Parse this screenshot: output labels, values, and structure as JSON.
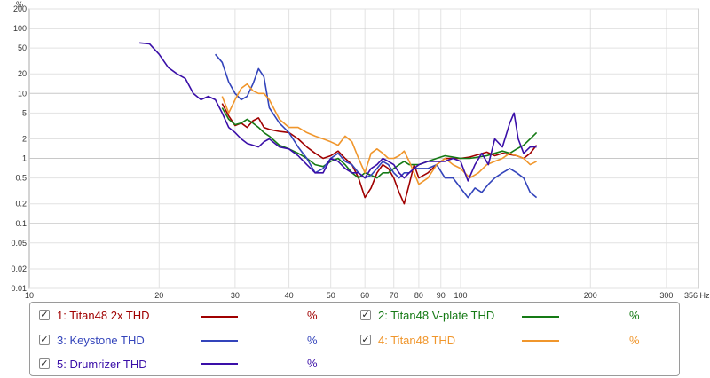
{
  "chart_data": {
    "type": "line",
    "title": "",
    "xlabel": "",
    "ylabel": "",
    "x_scale": "log",
    "y_scale": "log",
    "xlim": [
      10,
      356
    ],
    "ylim": [
      0.01,
      200
    ],
    "x_ticks": [
      {
        "v": 10,
        "label": "10"
      },
      {
        "v": 20,
        "label": "20"
      },
      {
        "v": 30,
        "label": "30"
      },
      {
        "v": 40,
        "label": "40"
      },
      {
        "v": 50,
        "label": "50"
      },
      {
        "v": 60,
        "label": "60"
      },
      {
        "v": 70,
        "label": "70"
      },
      {
        "v": 80,
        "label": "80"
      },
      {
        "v": 90,
        "label": "90"
      },
      {
        "v": 100,
        "label": "100"
      },
      {
        "v": 200,
        "label": "200"
      },
      {
        "v": 300,
        "label": "300"
      },
      {
        "v": 356,
        "label": "356 Hz"
      }
    ],
    "y_ticks": [
      {
        "v": 0.01,
        "label": "0.01"
      },
      {
        "v": 0.02,
        "label": "0.02"
      },
      {
        "v": 0.05,
        "label": "0.05"
      },
      {
        "v": 0.1,
        "label": "0.1"
      },
      {
        "v": 0.2,
        "label": "0.2"
      },
      {
        "v": 0.5,
        "label": "0.5"
      },
      {
        "v": 1,
        "label": "1"
      },
      {
        "v": 2,
        "label": "2"
      },
      {
        "v": 5,
        "label": "5"
      },
      {
        "v": 10,
        "label": "10"
      },
      {
        "v": 20,
        "label": "20"
      },
      {
        "v": 50,
        "label": "50"
      },
      {
        "v": 100,
        "label": "100"
      },
      {
        "v": 200,
        "label": "200"
      }
    ],
    "y_unit_label": "%",
    "grid": true,
    "legend_position": "bottom",
    "series": [
      {
        "name": "1: Titan48 2x THD",
        "color": "#a00000",
        "unit": "%",
        "checked": true,
        "x": [
          28,
          29,
          30,
          31,
          32,
          33,
          34,
          35,
          36,
          38,
          40,
          42,
          44,
          46,
          48,
          50,
          52,
          54,
          56,
          58,
          60,
          62,
          64,
          66,
          68,
          70,
          72,
          74,
          76,
          78,
          80,
          84,
          88,
          92,
          96,
          100,
          105,
          110,
          115,
          120,
          125,
          130,
          135,
          140,
          145,
          150
        ],
        "y": [
          7,
          4.5,
          3.2,
          3.5,
          3.0,
          3.8,
          4.2,
          3.0,
          2.8,
          2.6,
          2.5,
          2.0,
          1.5,
          1.2,
          1.0,
          1.1,
          1.3,
          1.0,
          0.8,
          0.5,
          0.25,
          0.35,
          0.6,
          0.8,
          0.7,
          0.5,
          0.3,
          0.2,
          0.4,
          0.8,
          0.5,
          0.6,
          0.8,
          1.0,
          1.0,
          1.0,
          1.05,
          1.15,
          1.25,
          1.1,
          1.2,
          1.15,
          1.1,
          1.0,
          1.2,
          1.6
        ]
      },
      {
        "name": "2: Titan48 V-plate THD",
        "color": "#157a15",
        "unit": "%",
        "checked": true,
        "x": [
          28,
          29,
          30,
          31,
          32,
          33,
          34,
          35,
          36,
          38,
          40,
          42,
          44,
          46,
          48,
          50,
          52,
          54,
          56,
          58,
          60,
          62,
          64,
          66,
          68,
          70,
          72,
          74,
          76,
          78,
          80,
          84,
          88,
          92,
          96,
          100,
          105,
          110,
          115,
          120,
          125,
          130,
          135,
          140,
          145,
          150
        ],
        "y": [
          6,
          4.0,
          3.3,
          3.5,
          4.0,
          3.5,
          3.0,
          2.5,
          2.2,
          1.6,
          1.4,
          1.2,
          1.0,
          0.8,
          0.75,
          0.9,
          1.0,
          0.8,
          0.6,
          0.5,
          0.6,
          0.55,
          0.5,
          0.6,
          0.6,
          0.7,
          0.8,
          0.9,
          0.8,
          0.8,
          0.8,
          0.9,
          1.0,
          1.1,
          1.05,
          1.0,
          1.0,
          1.05,
          1.1,
          1.2,
          1.3,
          1.2,
          1.4,
          1.6,
          2.0,
          2.5
        ]
      },
      {
        "name": "3: Keystone THD",
        "color": "#3344bb",
        "unit": "%",
        "checked": true,
        "x": [
          27,
          28,
          29,
          30,
          31,
          32,
          33,
          34,
          35,
          36,
          38,
          40,
          42,
          44,
          46,
          48,
          50,
          52,
          54,
          56,
          58,
          60,
          62,
          64,
          66,
          68,
          70,
          72,
          74,
          76,
          78,
          80,
          84,
          88,
          92,
          96,
          100,
          104,
          108,
          112,
          116,
          120,
          125,
          130,
          135,
          140,
          145,
          150
        ],
        "y": [
          40,
          30,
          15,
          10,
          8,
          9,
          14,
          24,
          18,
          6,
          3.5,
          2.5,
          1.5,
          1.0,
          0.6,
          0.7,
          1.0,
          1.2,
          0.9,
          0.8,
          0.6,
          0.5,
          0.55,
          0.7,
          0.9,
          0.8,
          0.6,
          0.5,
          0.6,
          0.6,
          0.7,
          0.7,
          0.7,
          0.8,
          0.5,
          0.5,
          0.35,
          0.25,
          0.35,
          0.3,
          0.4,
          0.5,
          0.6,
          0.7,
          0.6,
          0.5,
          0.3,
          0.25
        ]
      },
      {
        "name": "4: Titan48 THD",
        "color": "#f0962c",
        "unit": "%",
        "checked": true,
        "x": [
          28,
          29,
          30,
          31,
          32,
          33,
          34,
          35,
          36,
          38,
          40,
          42,
          44,
          46,
          48,
          50,
          52,
          54,
          56,
          58,
          60,
          62,
          64,
          66,
          68,
          70,
          72,
          74,
          76,
          78,
          80,
          84,
          88,
          92,
          96,
          100,
          105,
          110,
          115,
          120,
          125,
          130,
          135,
          140,
          145,
          150
        ],
        "y": [
          9,
          5.0,
          8,
          12,
          14,
          11,
          10,
          10,
          8,
          4.0,
          3.0,
          3.0,
          2.5,
          2.2,
          2.0,
          1.8,
          1.6,
          2.2,
          1.8,
          1.0,
          0.6,
          1.2,
          1.4,
          1.2,
          1.0,
          1.0,
          1.1,
          1.3,
          0.9,
          0.6,
          0.4,
          0.5,
          0.8,
          1.0,
          0.8,
          0.7,
          0.5,
          0.6,
          0.8,
          0.9,
          1.0,
          1.2,
          1.1,
          1.0,
          0.8,
          0.9
        ]
      },
      {
        "name": "5: Drumrizer THD",
        "color": "#3a0fa8",
        "unit": "%",
        "checked": true,
        "x": [
          18,
          19,
          20,
          21,
          22,
          23,
          24,
          25,
          26,
          27,
          28,
          29,
          30,
          31,
          32,
          33,
          34,
          35,
          36,
          38,
          40,
          42,
          44,
          46,
          48,
          50,
          52,
          54,
          56,
          58,
          60,
          62,
          64,
          66,
          68,
          70,
          72,
          74,
          76,
          78,
          80,
          84,
          88,
          92,
          96,
          100,
          104,
          108,
          112,
          116,
          120,
          125,
          130,
          133,
          136,
          140,
          145,
          150
        ],
        "y": [
          60,
          58,
          40,
          25,
          20,
          17,
          10,
          8,
          9,
          8,
          5.0,
          3.0,
          2.5,
          2.0,
          1.7,
          1.6,
          1.5,
          1.8,
          2.0,
          1.5,
          1.4,
          1.1,
          0.8,
          0.6,
          0.6,
          1.0,
          0.9,
          0.7,
          0.6,
          0.6,
          0.5,
          0.7,
          0.8,
          1.0,
          0.9,
          0.8,
          0.6,
          0.5,
          0.6,
          0.7,
          0.8,
          0.9,
          0.9,
          0.9,
          1.0,
          0.9,
          0.45,
          0.8,
          1.2,
          0.8,
          2.0,
          1.5,
          3.5,
          5.0,
          2.0,
          1.2,
          1.5,
          1.5
        ]
      }
    ]
  }
}
